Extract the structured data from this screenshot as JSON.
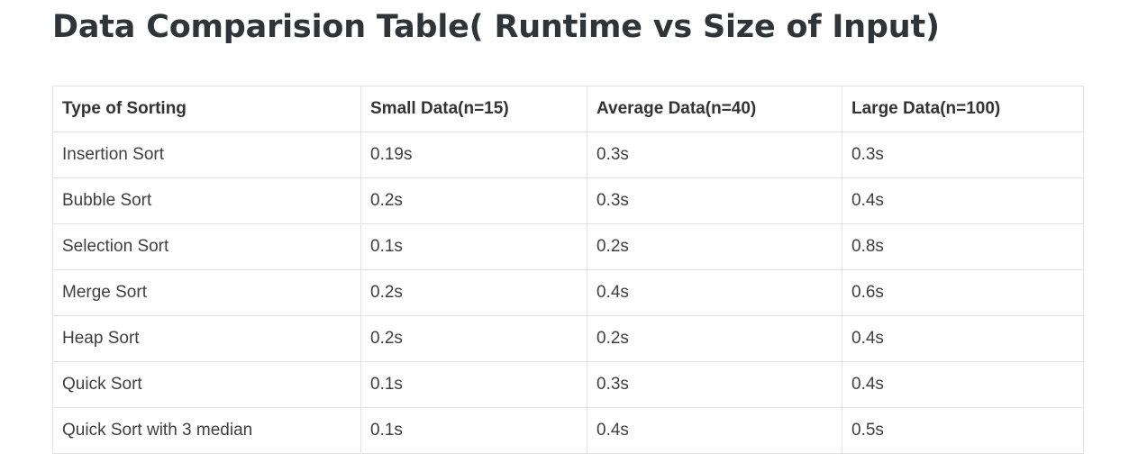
{
  "page": {
    "title": "Data Comparision Table( Runtime vs Size of Input)"
  },
  "table": {
    "headers": [
      "Type of Sorting",
      "Small Data(n=15)",
      "Average Data(n=40)",
      "Large Data(n=100)"
    ],
    "rows": [
      [
        "Insertion Sort",
        "0.19s",
        "0.3s",
        "0.3s"
      ],
      [
        "Bubble Sort",
        "0.2s",
        "0.3s",
        "0.4s"
      ],
      [
        "Selection Sort",
        "0.1s",
        "0.2s",
        "0.8s"
      ],
      [
        "Merge Sort",
        "0.2s",
        "0.4s",
        "0.6s"
      ],
      [
        "Heap Sort",
        "0.2s",
        "0.2s",
        "0.4s"
      ],
      [
        "Quick Sort",
        "0.1s",
        "0.3s",
        "0.4s"
      ],
      [
        "Quick Sort with 3 median",
        "0.1s",
        "0.4s",
        "0.5s"
      ]
    ]
  }
}
